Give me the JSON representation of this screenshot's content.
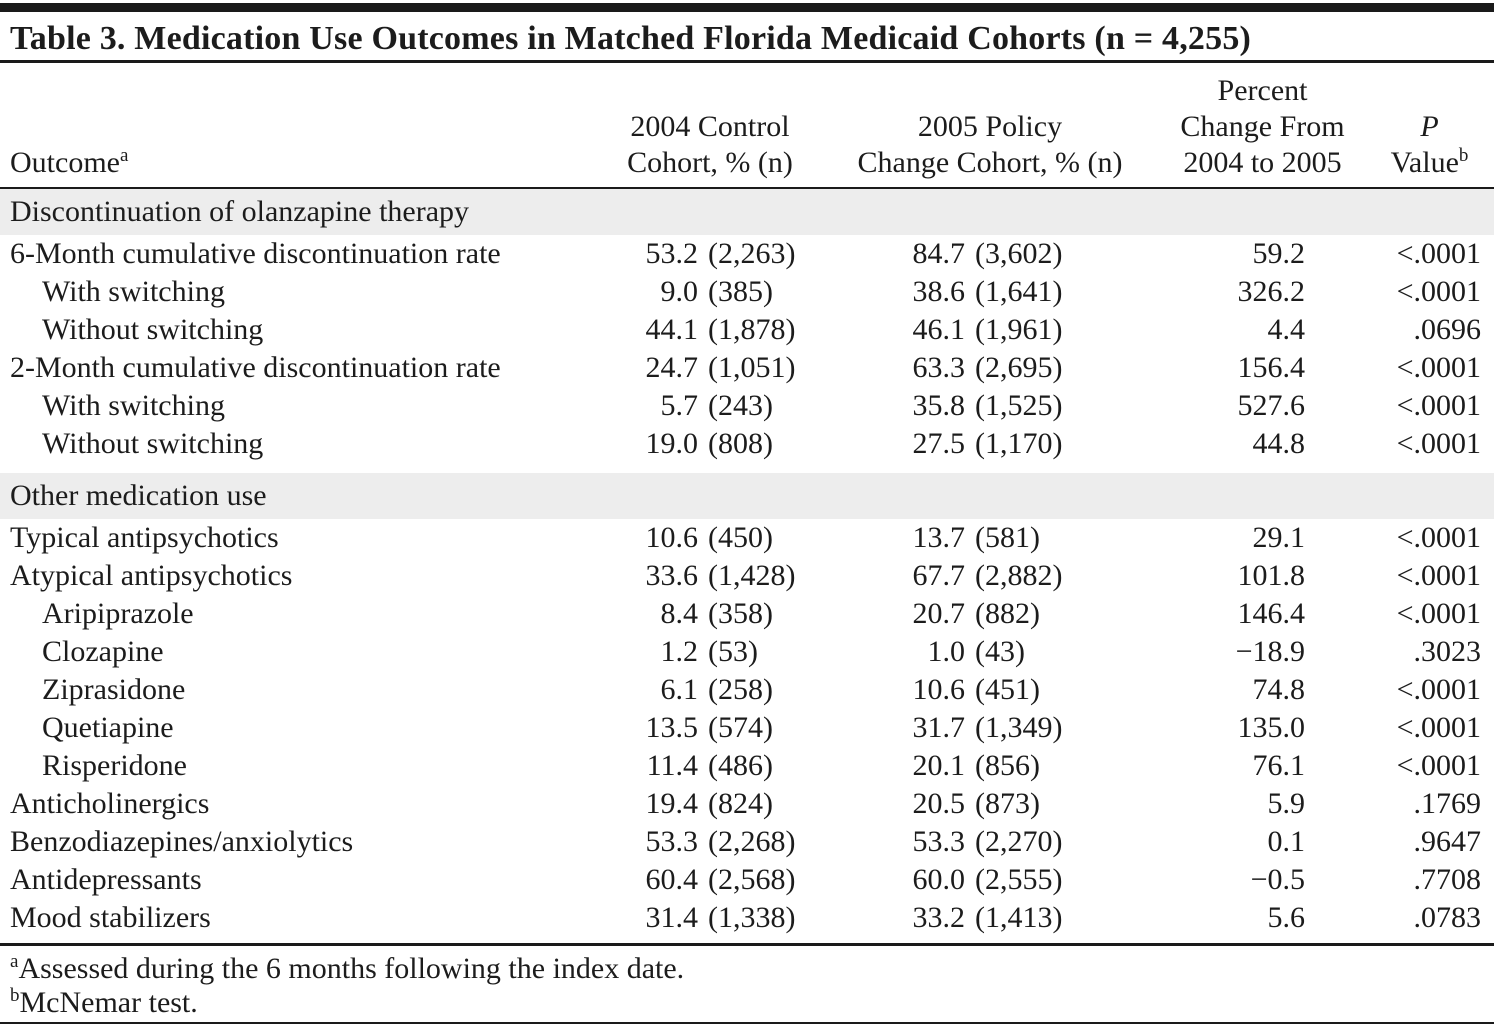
{
  "table": {
    "title": "Table 3. Medication Use Outcomes in Matched Florida Medicaid Cohorts (n = 4,255)",
    "columns": {
      "outcome": {
        "label": "Outcome",
        "sup": "a"
      },
      "c2004": {
        "line1": "2004 Control",
        "line2": "Cohort, % (n)"
      },
      "c2005": {
        "line1": "2005 Policy",
        "line2": "Change Cohort, % (n)"
      },
      "change": {
        "line1": "Percent",
        "line2": "Change From",
        "line3": "2004 to 2005"
      },
      "pvalue": {
        "line1": "P",
        "line2": "Value",
        "sup": "b"
      }
    },
    "sections": [
      {
        "header": "Discontinuation of olanzapine therapy",
        "rows": [
          {
            "outcome": "6-Month cumulative discontinuation rate",
            "indent": false,
            "c2004": {
              "pct": "53.2",
              "n": "(2,263)"
            },
            "c2005": {
              "pct": "84.7",
              "n": "(3,602)"
            },
            "change": "59.2",
            "p": "<.0001"
          },
          {
            "outcome": "With switching",
            "indent": true,
            "c2004": {
              "pct": "9.0",
              "n": "(385)"
            },
            "c2005": {
              "pct": "38.6",
              "n": "(1,641)"
            },
            "change": "326.2",
            "p": "<.0001"
          },
          {
            "outcome": "Without switching",
            "indent": true,
            "c2004": {
              "pct": "44.1",
              "n": "(1,878)"
            },
            "c2005": {
              "pct": "46.1",
              "n": "(1,961)"
            },
            "change": "4.4",
            "p": ".0696"
          },
          {
            "outcome": "2-Month cumulative discontinuation rate",
            "indent": false,
            "c2004": {
              "pct": "24.7",
              "n": "(1,051)"
            },
            "c2005": {
              "pct": "63.3",
              "n": "(2,695)"
            },
            "change": "156.4",
            "p": "<.0001"
          },
          {
            "outcome": "With switching",
            "indent": true,
            "c2004": {
              "pct": "5.7",
              "n": "(243)"
            },
            "c2005": {
              "pct": "35.8",
              "n": "(1,525)"
            },
            "change": "527.6",
            "p": "<.0001"
          },
          {
            "outcome": "Without switching",
            "indent": true,
            "c2004": {
              "pct": "19.0",
              "n": "(808)"
            },
            "c2005": {
              "pct": "27.5",
              "n": "(1,170)"
            },
            "change": "44.8",
            "p": "<.0001"
          }
        ]
      },
      {
        "header": "Other medication use",
        "rows": [
          {
            "outcome": "Typical antipsychotics",
            "indent": false,
            "c2004": {
              "pct": "10.6",
              "n": "(450)"
            },
            "c2005": {
              "pct": "13.7",
              "n": "(581)"
            },
            "change": "29.1",
            "p": "<.0001"
          },
          {
            "outcome": "Atypical antipsychotics",
            "indent": false,
            "c2004": {
              "pct": "33.6",
              "n": "(1,428)"
            },
            "c2005": {
              "pct": "67.7",
              "n": "(2,882)"
            },
            "change": "101.8",
            "p": "<.0001"
          },
          {
            "outcome": "Aripiprazole",
            "indent": true,
            "c2004": {
              "pct": "8.4",
              "n": "(358)"
            },
            "c2005": {
              "pct": "20.7",
              "n": "(882)"
            },
            "change": "146.4",
            "p": "<.0001"
          },
          {
            "outcome": "Clozapine",
            "indent": true,
            "c2004": {
              "pct": "1.2",
              "n": "(53)"
            },
            "c2005": {
              "pct": "1.0",
              "n": "(43)"
            },
            "change": "−18.9",
            "p": ".3023"
          },
          {
            "outcome": "Ziprasidone",
            "indent": true,
            "c2004": {
              "pct": "6.1",
              "n": "(258)"
            },
            "c2005": {
              "pct": "10.6",
              "n": "(451)"
            },
            "change": "74.8",
            "p": "<.0001"
          },
          {
            "outcome": "Quetiapine",
            "indent": true,
            "c2004": {
              "pct": "13.5",
              "n": "(574)"
            },
            "c2005": {
              "pct": "31.7",
              "n": "(1,349)"
            },
            "change": "135.0",
            "p": "<.0001"
          },
          {
            "outcome": "Risperidone",
            "indent": true,
            "c2004": {
              "pct": "11.4",
              "n": "(486)"
            },
            "c2005": {
              "pct": "20.1",
              "n": "(856)"
            },
            "change": "76.1",
            "p": "<.0001"
          },
          {
            "outcome": "Anticholinergics",
            "indent": false,
            "c2004": {
              "pct": "19.4",
              "n": "(824)"
            },
            "c2005": {
              "pct": "20.5",
              "n": "(873)"
            },
            "change": "5.9",
            "p": ".1769"
          },
          {
            "outcome": "Benzodiazepines/anxiolytics",
            "indent": false,
            "c2004": {
              "pct": "53.3",
              "n": "(2,268)"
            },
            "c2005": {
              "pct": "53.3",
              "n": "(2,270)"
            },
            "change": "0.1",
            "p": ".9647"
          },
          {
            "outcome": "Antidepressants",
            "indent": false,
            "c2004": {
              "pct": "60.4",
              "n": "(2,568)"
            },
            "c2005": {
              "pct": "60.0",
              "n": "(2,555)"
            },
            "change": "−0.5",
            "p": ".7708"
          },
          {
            "outcome": "Mood stabilizers",
            "indent": false,
            "c2004": {
              "pct": "31.4",
              "n": "(1,338)"
            },
            "c2005": {
              "pct": "33.2",
              "n": "(1,413)"
            },
            "change": "5.6",
            "p": ".0783"
          }
        ]
      }
    ],
    "footnotes": [
      {
        "sup": "a",
        "text": "Assessed during the 6 months following the index date."
      },
      {
        "sup": "b",
        "text": "McNemar test."
      }
    ]
  }
}
